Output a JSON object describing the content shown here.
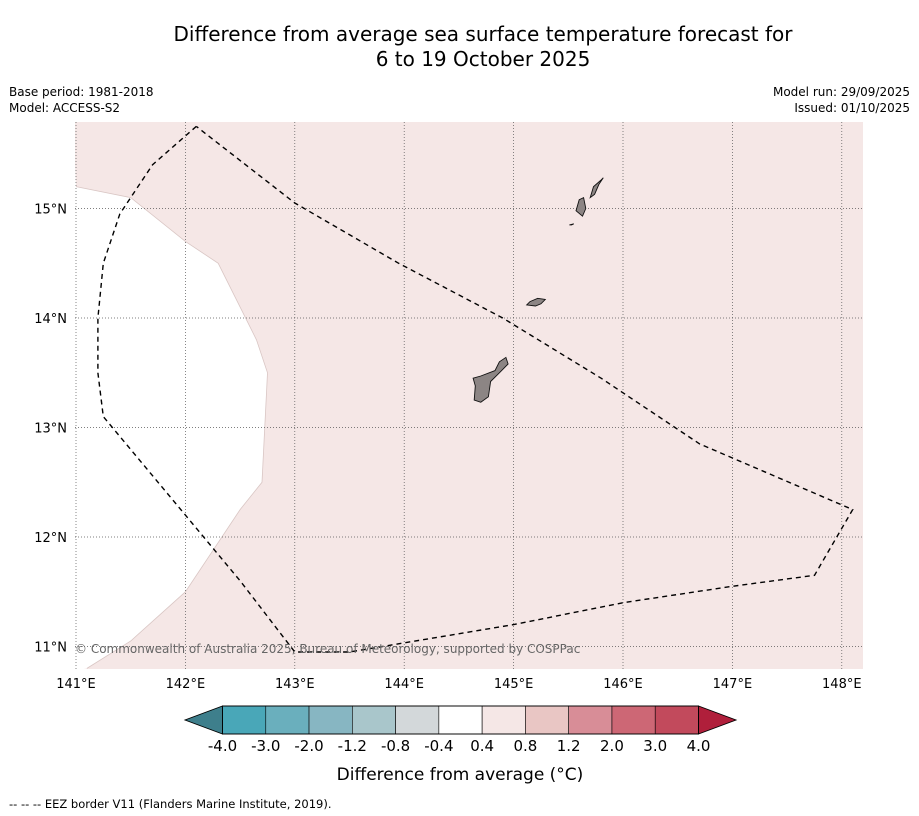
{
  "title": {
    "line1": "Difference from average sea surface temperature forecast for",
    "line2": "6 to 19 October 2025"
  },
  "meta_left": {
    "base_period": "Base period: 1981-2018",
    "model": "Model: ACCESS-S2"
  },
  "meta_right": {
    "model_run": "Model run: 29/09/2025",
    "issued": "Issued: 01/10/2025"
  },
  "copyright": "© Commonwealth of Australia 2025, Bureau of Meteorology, supported by COSPPac",
  "legend_note": "--  --  -- EEZ border V11 (Flanders Marine Institute, 2019).",
  "colors": {
    "anomaly_fill": "#f5e7e6",
    "land": "#8c8584",
    "eez_line": "#000000"
  },
  "chart_data": {
    "type": "heatmap",
    "title": "Difference from average sea surface temperature forecast for 6 to 19 October 2025",
    "xlabel": "",
    "ylabel": "",
    "xlim": [
      141.0,
      148.2
    ],
    "ylim": [
      10.8,
      15.8
    ],
    "x_ticks": [
      141,
      142,
      143,
      144,
      145,
      146,
      147,
      148
    ],
    "x_tick_labels": [
      "141°E",
      "142°E",
      "143°E",
      "144°E",
      "145°E",
      "146°E",
      "147°E",
      "148°E"
    ],
    "y_ticks": [
      11,
      12,
      13,
      14,
      15
    ],
    "y_tick_labels": [
      "11°N",
      "12°N",
      "13°N",
      "14°N",
      "15°N"
    ],
    "grid": true,
    "anomaly_region": {
      "category": "0.4 to 0.8",
      "boundary": [
        [
          141.0,
          15.2
        ],
        [
          141.5,
          15.1
        ],
        [
          142.0,
          14.7
        ],
        [
          142.3,
          14.5
        ],
        [
          142.5,
          14.1
        ],
        [
          142.65,
          13.8
        ],
        [
          142.75,
          13.5
        ],
        [
          142.7,
          12.5
        ],
        [
          142.5,
          12.25
        ],
        [
          142.0,
          11.5
        ],
        [
          141.5,
          11.05
        ],
        [
          141.1,
          10.8
        ]
      ]
    },
    "eez_border": [
      [
        142.1,
        15.75
      ],
      [
        141.7,
        15.4
      ],
      [
        141.4,
        14.95
      ],
      [
        141.25,
        14.5
      ],
      [
        141.2,
        14.0
      ],
      [
        141.2,
        13.5
      ],
      [
        141.25,
        13.1
      ],
      [
        142.0,
        12.2
      ],
      [
        142.5,
        11.6
      ],
      [
        143.0,
        10.95
      ],
      [
        143.5,
        10.95
      ],
      [
        145.0,
        11.2
      ],
      [
        146.0,
        11.4
      ],
      [
        147.0,
        11.55
      ],
      [
        147.75,
        11.65
      ],
      [
        148.1,
        12.25
      ],
      [
        146.7,
        12.85
      ],
      [
        145.8,
        13.45
      ],
      [
        144.9,
        14.0
      ],
      [
        143.95,
        14.5
      ],
      [
        143.0,
        15.05
      ],
      [
        142.1,
        15.75
      ]
    ],
    "islands": [
      {
        "name": "Guam",
        "outline": [
          [
            144.63,
            13.45
          ],
          [
            144.7,
            13.47
          ],
          [
            144.83,
            13.52
          ],
          [
            144.87,
            13.6
          ],
          [
            144.93,
            13.64
          ],
          [
            144.95,
            13.58
          ],
          [
            144.87,
            13.5
          ],
          [
            144.79,
            13.42
          ],
          [
            144.77,
            13.28
          ],
          [
            144.7,
            13.23
          ],
          [
            144.64,
            13.25
          ],
          [
            144.65,
            13.38
          ],
          [
            144.63,
            13.45
          ]
        ]
      },
      {
        "name": "Rota",
        "outline": [
          [
            145.12,
            14.12
          ],
          [
            145.15,
            14.15
          ],
          [
            145.22,
            14.18
          ],
          [
            145.29,
            14.17
          ],
          [
            145.25,
            14.13
          ],
          [
            145.2,
            14.11
          ],
          [
            145.12,
            14.12
          ]
        ]
      },
      {
        "name": "Tinian",
        "outline": [
          [
            145.57,
            14.98
          ],
          [
            145.6,
            15.08
          ],
          [
            145.64,
            15.1
          ],
          [
            145.66,
            15.0
          ],
          [
            145.63,
            14.93
          ],
          [
            145.57,
            14.98
          ]
        ]
      },
      {
        "name": "Aguijan",
        "outline": [
          [
            145.51,
            14.85
          ],
          [
            145.55,
            14.86
          ],
          [
            145.53,
            14.85
          ],
          [
            145.51,
            14.85
          ]
        ]
      },
      {
        "name": "Saipan",
        "outline": [
          [
            145.7,
            15.1
          ],
          [
            145.73,
            15.2
          ],
          [
            145.8,
            15.26
          ],
          [
            145.82,
            15.28
          ],
          [
            145.78,
            15.22
          ],
          [
            145.74,
            15.13
          ],
          [
            145.7,
            15.1
          ]
        ]
      }
    ],
    "colorbar": {
      "label": "Difference from average (°C)",
      "tick_labels": [
        "-4.0",
        "-3.0",
        "-2.0",
        "-1.2",
        "-0.8",
        "-0.4",
        "0.4",
        "0.8",
        "1.2",
        "2.0",
        "3.0",
        "4.0"
      ],
      "under_color": "#3e7f8c",
      "over_color": "#b01f3b",
      "bins": [
        {
          "range": "-4.0 to -3.0",
          "color": "#49a7b8"
        },
        {
          "range": "-3.0 to -2.0",
          "color": "#6aafbd"
        },
        {
          "range": "-2.0 to -1.2",
          "color": "#87b6c2"
        },
        {
          "range": "-1.2 to -0.8",
          "color": "#a9c6cb"
        },
        {
          "range": "-0.8 to -0.4",
          "color": "#d3d8da"
        },
        {
          "range": "-0.4 to 0.4",
          "color": "#ffffff"
        },
        {
          "range": "0.4 to 0.8",
          "color": "#f5e7e6"
        },
        {
          "range": "0.8 to 1.2",
          "color": "#e9c6c4"
        },
        {
          "range": "1.2 to 2.0",
          "color": "#d88d97"
        },
        {
          "range": "2.0 to 3.0",
          "color": "#cd6775"
        },
        {
          "range": "3.0 to 4.0",
          "color": "#c24a5c"
        }
      ]
    }
  }
}
